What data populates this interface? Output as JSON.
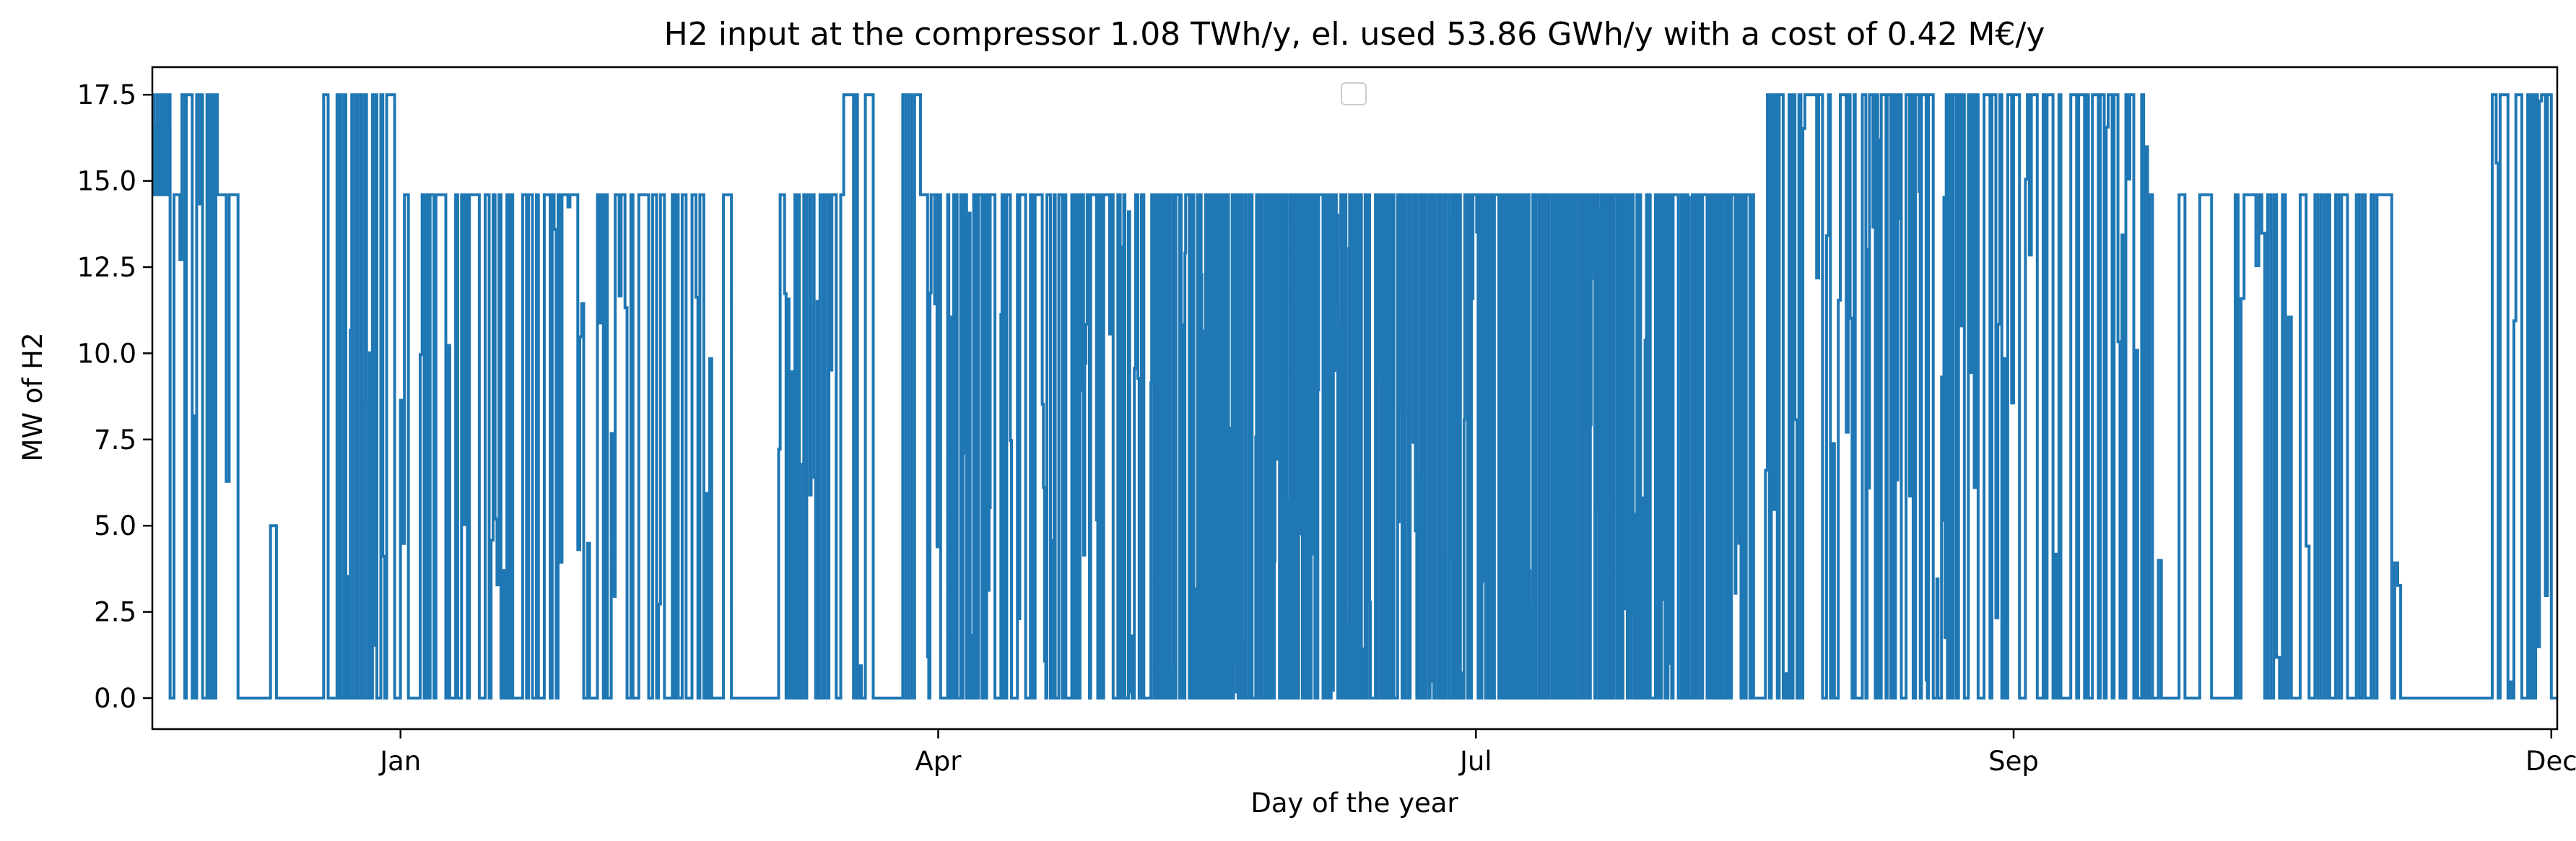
{
  "chart_data": {
    "type": "line",
    "title": "H2 input at the compressor 1.08 TWh/y, el. used 53.86 GWh/y with a cost of 0.42 M€/y",
    "xlabel": "Day of the year",
    "ylabel": "MW of H2",
    "xlim": [
      "2023-11-20",
      "2024-12-31"
    ],
    "ylim": [
      -0.9,
      18.3
    ],
    "x_ticks": [
      {
        "date": "2024-01-01",
        "label": "Jan"
      },
      {
        "date": "2024-04-01",
        "label": "Apr"
      },
      {
        "date": "2024-07-01",
        "label": "Jul"
      },
      {
        "date": "2024-09-30",
        "label": "Sep"
      },
      {
        "date": "2024-12-30",
        "label": "Dec"
      }
    ],
    "y_ticks": [
      0.0,
      2.5,
      5.0,
      7.5,
      10.0,
      12.5,
      15.0,
      17.5
    ],
    "y_tick_labels": [
      "0.0",
      "2.5",
      "5.0",
      "7.5",
      "10.0",
      "12.5",
      "15.0",
      "17.5"
    ],
    "grid": false,
    "legend": {
      "position": "top-center",
      "entries": []
    },
    "series": [
      {
        "color": "#1f77b4",
        "x_start": "2023-11-20",
        "x_end": "2024-12-31",
        "segments": [
          {
            "from": "2023-11-20",
            "to": "2023-11-23",
            "min": 14.6,
            "max": 17.5,
            "density": 6
          },
          {
            "from": "2023-11-23",
            "to": "2023-11-25",
            "min": 0.0,
            "max": 14.6,
            "density": 3
          },
          {
            "from": "2023-11-25",
            "to": "2023-12-01",
            "min": 0.0,
            "max": 17.5,
            "density": 4
          },
          {
            "from": "2023-12-01",
            "to": "2023-12-05",
            "min": 0.0,
            "max": 14.6,
            "density": 2
          },
          {
            "from": "2023-12-05",
            "to": "2023-12-10",
            "min": 0.0,
            "max": 0.0,
            "density": 0
          },
          {
            "from": "2023-12-10",
            "to": "2023-12-11",
            "min": 0.0,
            "max": 5.0,
            "density": 1
          },
          {
            "from": "2023-12-11",
            "to": "2023-12-19",
            "min": 0.0,
            "max": 0.0,
            "density": 0
          },
          {
            "from": "2023-12-19",
            "to": "2023-12-28",
            "min": 0.0,
            "max": 17.5,
            "density": 4
          },
          {
            "from": "2023-12-28",
            "to": "2023-12-31",
            "min": 0.0,
            "max": 17.5,
            "density": 3
          },
          {
            "from": "2023-12-31",
            "to": "2024-01-30",
            "min": 0.0,
            "max": 14.6,
            "density": 3
          },
          {
            "from": "2024-01-30",
            "to": "2024-02-26",
            "min": 0.0,
            "max": 14.6,
            "density": 3
          },
          {
            "from": "2024-02-26",
            "to": "2024-03-05",
            "min": 0.0,
            "max": 0.0,
            "density": 0
          },
          {
            "from": "2024-03-05",
            "to": "2024-03-16",
            "min": 0.0,
            "max": 14.6,
            "density": 4
          },
          {
            "from": "2024-03-16",
            "to": "2024-03-22",
            "min": 0.0,
            "max": 17.5,
            "density": 3
          },
          {
            "from": "2024-03-22",
            "to": "2024-03-26",
            "min": 0.0,
            "max": 0.0,
            "density": 0
          },
          {
            "from": "2024-03-26",
            "to": "2024-03-29",
            "min": 0.0,
            "max": 17.5,
            "density": 2
          },
          {
            "from": "2024-03-29",
            "to": "2024-05-06",
            "min": 0.0,
            "max": 14.6,
            "density": 5
          },
          {
            "from": "2024-05-06",
            "to": "2024-05-07",
            "min": 0.0,
            "max": 0.0,
            "density": 0
          },
          {
            "from": "2024-05-07",
            "to": "2024-06-30",
            "min": 0.0,
            "max": 14.6,
            "density": 8
          },
          {
            "from": "2024-06-30",
            "to": "2024-07-17",
            "min": 0.0,
            "max": 14.6,
            "density": 8
          },
          {
            "from": "2024-07-17",
            "to": "2024-08-17",
            "min": 0.0,
            "max": 14.6,
            "density": 8
          },
          {
            "from": "2024-08-17",
            "to": "2024-08-19",
            "min": 0.0,
            "max": 0.0,
            "density": 0
          },
          {
            "from": "2024-08-19",
            "to": "2024-09-03",
            "min": 0.0,
            "max": 17.5,
            "density": 3
          },
          {
            "from": "2024-09-03",
            "to": "2024-09-20",
            "min": 0.0,
            "max": 17.5,
            "density": 5
          },
          {
            "from": "2024-09-20",
            "to": "2024-10-12",
            "min": 0.0,
            "max": 17.5,
            "density": 3
          },
          {
            "from": "2024-10-12",
            "to": "2024-10-23",
            "min": 0.0,
            "max": 17.5,
            "density": 3
          },
          {
            "from": "2024-10-23",
            "to": "2024-11-20",
            "min": 0.0,
            "max": 14.6,
            "density": 2
          },
          {
            "from": "2024-11-20",
            "to": "2024-12-05",
            "min": 0.0,
            "max": 14.6,
            "density": 2
          },
          {
            "from": "2024-12-05",
            "to": "2024-12-20",
            "min": 0.0,
            "max": 0.0,
            "density": 0
          },
          {
            "from": "2024-12-20",
            "to": "2024-12-31",
            "min": 0.0,
            "max": 17.5,
            "density": 3
          }
        ]
      }
    ]
  }
}
